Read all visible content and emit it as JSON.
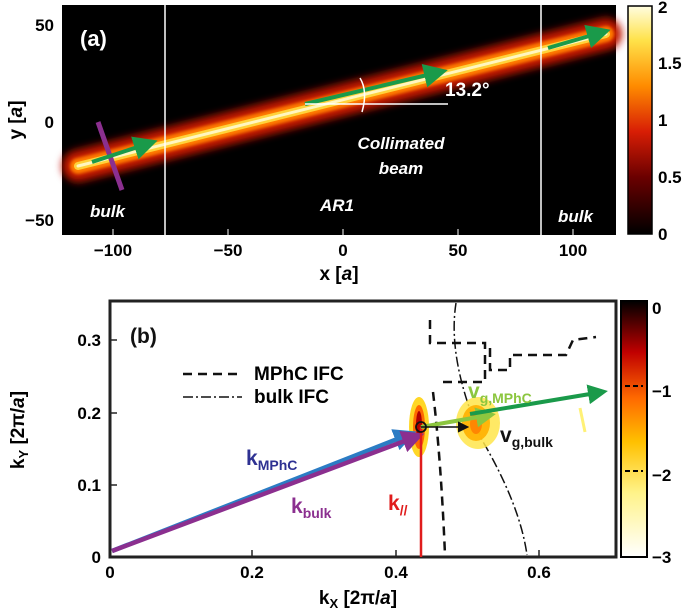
{
  "panel_a": {
    "label": "(a)",
    "xlabel_prefix": "x [",
    "xlabel_unit": "a",
    "xlabel_suffix": "]",
    "ylabel_prefix": "y [",
    "ylabel_unit": "a",
    "ylabel_suffix": "]",
    "xticks": [
      "−100",
      "−50",
      "0",
      "50",
      "100"
    ],
    "yticks": [
      "50",
      "0",
      "−50"
    ],
    "annotations": {
      "bulk_left": "bulk",
      "bulk_right": "bulk",
      "region": "AR1",
      "beam_line1": "Collimated",
      "beam_line2": "beam",
      "angle": "13.2°"
    },
    "colorbar_ticks": [
      "2",
      "1.5",
      "1",
      "0.5",
      "0"
    ]
  },
  "panel_b": {
    "label": "(b)",
    "xlabel_main": "k",
    "xlabel_sub": "X",
    "xlabel_rest": " [2π/",
    "xlabel_unit": "a",
    "xlabel_end": "]",
    "ylabel_main": "k",
    "ylabel_sub": "Y",
    "ylabel_rest": " [2π/",
    "ylabel_unit": "a",
    "ylabel_end": "]",
    "xticks": [
      "0",
      "0.2",
      "0.4",
      "0.6"
    ],
    "yticks": [
      "0",
      "0.1",
      "0.2",
      "0.3"
    ],
    "legend": {
      "mphc": "MPhC IFC",
      "bulk": "bulk IFC"
    },
    "vectors": {
      "k_mphc_main": "k",
      "k_mphc_sub": "MPhC",
      "k_bulk_main": "k",
      "k_bulk_sub": "bulk",
      "k_par": "k",
      "k_par_sub": "//",
      "vg_mphc_main": "v",
      "vg_mphc_sub": "g,MPhC",
      "vg_bulk_main": "v",
      "vg_bulk_sub": "g,bulk"
    },
    "colorbar_ticks": [
      "0",
      "−1",
      "−2",
      "−3"
    ]
  },
  "colors": {
    "k_mphc": "#2b7cc4",
    "k_bulk": "#8b2f8f",
    "k_par": "#e01c1c",
    "vg_mphc": "#8cc63f",
    "vg_bulk": "#111111",
    "arrow_green": "#1a9a4a",
    "beam_core": "#ffe88a",
    "mphc_label": "#2e3192",
    "kbulk_label": "#8b2f8f"
  }
}
